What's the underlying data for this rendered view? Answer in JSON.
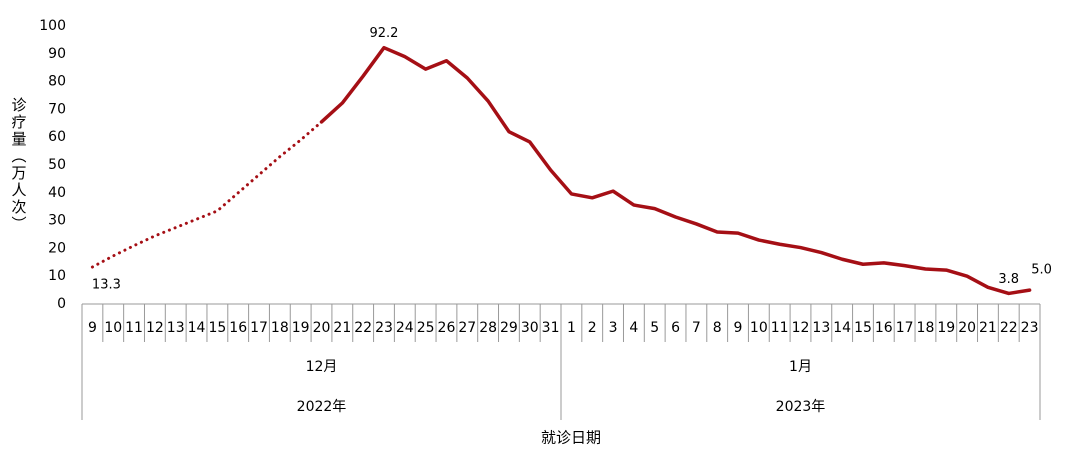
{
  "chart_data": {
    "type": "line",
    "y_axis_label": "诊疗量（万人次）",
    "x_axis_label": "就诊日期",
    "categories": [
      "9",
      "10",
      "11",
      "12",
      "13",
      "14",
      "15",
      "16",
      "17",
      "18",
      "19",
      "20",
      "21",
      "22",
      "23",
      "24",
      "25",
      "26",
      "27",
      "28",
      "29",
      "30",
      "31",
      "1",
      "2",
      "3",
      "4",
      "5",
      "6",
      "7",
      "8",
      "9",
      "10",
      "11",
      "12",
      "13",
      "14",
      "15",
      "16",
      "17",
      "18",
      "19",
      "20",
      "21",
      "22",
      "23"
    ],
    "month_labels": [
      "12月",
      "1月"
    ],
    "year_labels": [
      "2022年",
      "2023年"
    ],
    "series": [
      {
        "color": "#a50f15",
        "style": "dotted",
        "values": [
          13.3,
          17.3,
          21,
          24.5,
          27.5,
          30.5,
          33.5,
          40,
          46.5,
          53,
          59,
          65.5,
          null,
          null,
          null,
          null,
          null,
          null,
          null,
          null,
          null,
          null,
          null,
          null,
          null,
          null,
          null,
          null,
          null,
          null,
          null,
          null,
          null,
          null,
          null,
          null,
          null,
          null,
          null,
          null,
          null,
          null,
          null,
          null,
          null,
          null
        ],
        "value_labels": [
          "13.3",
          null,
          null,
          null,
          null,
          null,
          null,
          null,
          null,
          null,
          null,
          null,
          null,
          null,
          null,
          null,
          null,
          null,
          null,
          null,
          null,
          null,
          null,
          null,
          null,
          null,
          null,
          null,
          null,
          null,
          null,
          null,
          null,
          null,
          null,
          null,
          null,
          null,
          null,
          null,
          null,
          null,
          null,
          null,
          null,
          null
        ]
      },
      {
        "color": "#a50f15",
        "style": "solid",
        "values": [
          null,
          null,
          null,
          null,
          null,
          null,
          null,
          null,
          null,
          null,
          null,
          65.5,
          72.3,
          82,
          92.2,
          89,
          84.5,
          87.5,
          81.3,
          73,
          62,
          58.3,
          48.2,
          39.6,
          38.2,
          40.6,
          35.6,
          34.3,
          31.3,
          28.8,
          25.9,
          25.5,
          23,
          21.5,
          20.3,
          18.5,
          16.1,
          14.3,
          14.8,
          13.8,
          12.6,
          12.2,
          10,
          6,
          3.8,
          5
        ],
        "value_labels": [
          null,
          null,
          null,
          null,
          null,
          null,
          null,
          null,
          null,
          null,
          null,
          null,
          null,
          null,
          "92.2",
          null,
          null,
          null,
          null,
          null,
          null,
          null,
          null,
          null,
          null,
          null,
          null,
          null,
          null,
          null,
          null,
          null,
          null,
          null,
          null,
          null,
          null,
          null,
          null,
          null,
          null,
          null,
          null,
          null,
          "3.8",
          "5.0"
        ]
      }
    ],
    "ylim": [
      0,
      100
    ],
    "yticks": [
      0,
      10,
      20,
      30,
      40,
      50,
      60,
      70,
      80,
      90,
      100
    ],
    "grid": false
  }
}
